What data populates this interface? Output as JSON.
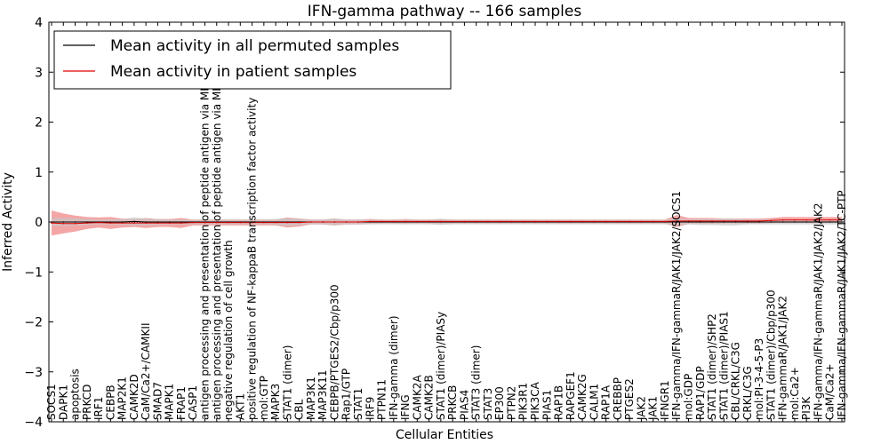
{
  "chart_data": {
    "type": "line",
    "title": "IFN-gamma pathway -- 166 samples",
    "xlabel": "Cellular Entities",
    "ylabel": "Inferred Activity",
    "ylim": [
      -4,
      4
    ],
    "yticks": [
      "4",
      "3",
      "2",
      "1",
      "0",
      "−1",
      "−2",
      "−3",
      "−4"
    ],
    "legend_position": "top-left",
    "categories": [
      "SOCS1",
      "DAPK1",
      "apoptosis",
      "PRKCD",
      "IRF1",
      "CEBPB",
      "MAP2K1",
      "CAMK2D",
      "CaM/Ca2+/CAMKII",
      "SMAD7",
      "MAPK1",
      "FRAP1",
      "CASP1",
      "antigen processing and presentation of peptide antigen via MHC class I",
      "antigen processing and presentation of peptide antigen via MHC class II",
      "negative regulation of cell growth",
      "AKT1",
      "positive regulation of NF-kappaB transcription factor activity",
      "mol:GTP",
      "MAPK3",
      "STAT1 (dimer)",
      "CBL",
      "MAP3K1",
      "MAP3K11",
      "CEBPB/PTGES2/Cbp/p300",
      "Rap1/GTP",
      "STAT1",
      "IRF9",
      "PTPN11",
      "IFN-gamma (dimer)",
      "IFNG",
      "CAMK2A",
      "CAMK2B",
      "STAT1 (dimer)/PIASy",
      "PRKCB",
      "PIAS4",
      "STAT3 (dimer)",
      "STAT3",
      "EP300",
      "PTPN2",
      "PIK3R1",
      "PIK3CA",
      "PIAS1",
      "RAP1B",
      "RAPGEF1",
      "CAMK2G",
      "CALM1",
      "RAP1A",
      "CREBBP",
      "PTGES2",
      "JAK2",
      "JAK1",
      "IFNGR1",
      "IFN-gamma/IFN-gammaR/JAK1/JAK2/SOCS1",
      "mol:GDP",
      "RAP1/GDP",
      "STAT1 (dimer)/SHP2",
      "STAT1 (dimer)/PIAS1",
      "CBL/CRKL/C3G",
      "CRKL/C3G",
      "mol:PI-3-4-5-P3",
      "STAT1 (dimer)/Cbp/p300",
      "IFN-gammaR/JAK1/JAK2",
      "mol:Ca2+",
      "PI3K",
      "IFN-gamma/IFN-gammaR/JAK1/JAK2/JAK2",
      "CaM/Ca2+",
      "IFN-gamma/IFN-gammaR/JAK1/JAK2/TC-PTP"
    ],
    "series": [
      {
        "name": "Mean activity in all permuted samples",
        "color": "#000000",
        "band_color": "#c8c8c8",
        "values": [
          0.0,
          0.0,
          0.0,
          0.0,
          0.0,
          0.0,
          0.0,
          0.01,
          0.0,
          0.0,
          0.0,
          0.0,
          0.0,
          0.0,
          0.0,
          0.0,
          0.0,
          0.0,
          0.0,
          0.0,
          0.0,
          0.0,
          0.0,
          0.0,
          0.0,
          0.0,
          0.0,
          0.0,
          0.0,
          0.0,
          0.0,
          0.0,
          0.0,
          0.0,
          0.0,
          0.0,
          0.0,
          0.0,
          0.0,
          0.0,
          0.0,
          0.0,
          0.0,
          0.0,
          0.0,
          0.0,
          0.0,
          0.0,
          0.0,
          0.0,
          0.0,
          0.0,
          0.0,
          0.0,
          0.0,
          0.0,
          0.0,
          0.0,
          0.0,
          0.0,
          0.0,
          0.0,
          0.0,
          0.0,
          0.0,
          0.0,
          0.0,
          0.0
        ],
        "band": [
          0.08,
          0.08,
          0.07,
          0.06,
          0.05,
          0.05,
          0.06,
          0.08,
          0.07,
          0.06,
          0.05,
          0.05,
          0.05,
          0.05,
          0.05,
          0.05,
          0.05,
          0.05,
          0.05,
          0.06,
          0.08,
          0.07,
          0.05,
          0.05,
          0.07,
          0.05,
          0.05,
          0.05,
          0.05,
          0.05,
          0.05,
          0.05,
          0.05,
          0.06,
          0.05,
          0.05,
          0.05,
          0.05,
          0.05,
          0.05,
          0.05,
          0.05,
          0.05,
          0.05,
          0.05,
          0.05,
          0.05,
          0.05,
          0.05,
          0.05,
          0.05,
          0.05,
          0.05,
          0.07,
          0.05,
          0.06,
          0.06,
          0.07,
          0.07,
          0.05,
          0.05,
          0.05,
          0.05,
          0.05,
          0.05,
          0.05,
          0.05,
          0.05
        ]
      },
      {
        "name": "Mean activity in patient samples",
        "color": "#dd0000",
        "band_color": "#f08080",
        "values": [
          -0.02,
          -0.03,
          -0.03,
          -0.02,
          -0.01,
          -0.02,
          -0.02,
          -0.02,
          -0.02,
          -0.02,
          -0.02,
          -0.02,
          -0.01,
          -0.01,
          -0.01,
          -0.01,
          -0.01,
          -0.01,
          -0.01,
          -0.01,
          -0.01,
          -0.01,
          0.0,
          0.0,
          0.0,
          0.0,
          0.0,
          0.01,
          0.01,
          0.01,
          0.01,
          0.01,
          0.01,
          0.01,
          0.01,
          0.01,
          0.01,
          0.01,
          0.01,
          0.01,
          0.01,
          0.01,
          0.01,
          0.01,
          0.01,
          0.01,
          0.01,
          0.01,
          0.01,
          0.01,
          0.01,
          0.01,
          0.01,
          0.02,
          0.02,
          0.02,
          0.02,
          0.02,
          0.02,
          0.02,
          0.02,
          0.03,
          0.04,
          0.04,
          0.04,
          0.04,
          0.04,
          0.04
        ],
        "band": [
          0.25,
          0.2,
          0.16,
          0.12,
          0.1,
          0.12,
          0.09,
          0.08,
          0.1,
          0.08,
          0.08,
          0.1,
          0.06,
          0.06,
          0.06,
          0.06,
          0.06,
          0.06,
          0.06,
          0.06,
          0.1,
          0.08,
          0.05,
          0.05,
          0.07,
          0.05,
          0.05,
          0.05,
          0.04,
          0.04,
          0.05,
          0.04,
          0.04,
          0.05,
          0.04,
          0.04,
          0.04,
          0.04,
          0.04,
          0.04,
          0.04,
          0.04,
          0.04,
          0.04,
          0.04,
          0.04,
          0.04,
          0.04,
          0.04,
          0.04,
          0.04,
          0.04,
          0.04,
          0.12,
          0.06,
          0.06,
          0.06,
          0.05,
          0.05,
          0.05,
          0.05,
          0.05,
          0.06,
          0.06,
          0.06,
          0.06,
          0.06,
          0.06
        ]
      }
    ]
  }
}
